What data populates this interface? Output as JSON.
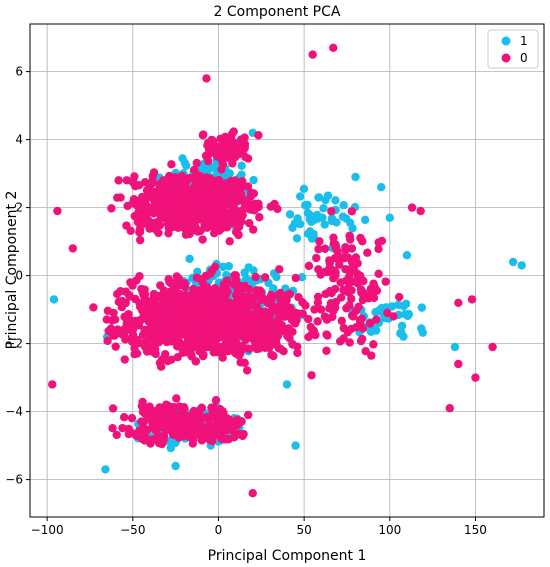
{
  "chart_data": {
    "type": "scatter",
    "title": "2 Component PCA",
    "xlabel": "Principal Component 1",
    "ylabel": "Principal Component 2",
    "xlim": [
      -110,
      190
    ],
    "ylim": [
      -7.1,
      7.4
    ],
    "xticks": [
      -100,
      -50,
      0,
      50,
      100,
      150
    ],
    "yticks": [
      -6,
      -4,
      -2,
      0,
      2,
      4,
      6
    ],
    "grid": true,
    "legend_position": "top-right",
    "series": [
      {
        "name": "1",
        "color": "#19bfea",
        "clusters": [
          {
            "x": [
              -40,
              30
            ],
            "y": [
              1.2,
              3.8
            ],
            "n": 180
          },
          {
            "x": [
              -45,
              60
            ],
            "y": [
              -2.6,
              0.8
            ],
            "n": 230
          },
          {
            "x": [
              -55,
              25
            ],
            "y": [
              -5.3,
              -3.5
            ],
            "n": 90
          },
          {
            "x": [
              30,
              95
            ],
            "y": [
              0.2,
              3.2
            ],
            "n": 45
          },
          {
            "x": [
              60,
              140
            ],
            "y": [
              -2.3,
              -0.3
            ],
            "n": 35
          }
        ],
        "points": [
          {
            "x": 172,
            "y": 0.4
          },
          {
            "x": 177,
            "y": 0.3
          },
          {
            "x": -96,
            "y": -0.7
          },
          {
            "x": -66,
            "y": -5.7
          },
          {
            "x": 45,
            "y": -5.0
          },
          {
            "x": 110,
            "y": 0.6
          },
          {
            "x": 138,
            "y": -2.1
          },
          {
            "x": 95,
            "y": 2.6
          },
          {
            "x": 80,
            "y": 2.9
          },
          {
            "x": 10,
            "y": 3.9
          },
          {
            "x": 20,
            "y": 4.2
          },
          {
            "x": -65,
            "y": -1.8
          },
          {
            "x": -25,
            "y": -5.6
          },
          {
            "x": 40,
            "y": -3.2
          },
          {
            "x": 100,
            "y": 1.7
          }
        ]
      },
      {
        "name": "0",
        "color": "#f0127a",
        "clusters": [
          {
            "x": [
              -70,
              40
            ],
            "y": [
              0.8,
              3.4
            ],
            "n": 650
          },
          {
            "x": [
              -85,
              75
            ],
            "y": [
              -3.0,
              0.5
            ],
            "n": 1000
          },
          {
            "x": [
              -70,
              30
            ],
            "y": [
              -5.2,
              -3.5
            ],
            "n": 260
          },
          {
            "x": [
              -20,
              30
            ],
            "y": [
              3.0,
              4.5
            ],
            "n": 70
          },
          {
            "x": [
              40,
              110
            ],
            "y": [
              -3.0,
              2.5
            ],
            "n": 130
          }
        ],
        "points": [
          {
            "x": 67,
            "y": 6.7
          },
          {
            "x": 55,
            "y": 6.5
          },
          {
            "x": -7,
            "y": 5.8
          },
          {
            "x": 160,
            "y": -2.1
          },
          {
            "x": 148,
            "y": -0.7
          },
          {
            "x": 135,
            "y": -3.9
          },
          {
            "x": -97,
            "y": -3.2
          },
          {
            "x": 20,
            "y": -6.4
          },
          {
            "x": -94,
            "y": 1.9
          },
          {
            "x": 113,
            "y": 2.0
          },
          {
            "x": 118,
            "y": 1.9
          },
          {
            "x": 140,
            "y": -0.8
          },
          {
            "x": 150,
            "y": -3.0
          },
          {
            "x": -85,
            "y": 0.8
          },
          {
            "x": 140,
            "y": -2.6
          }
        ]
      }
    ]
  }
}
